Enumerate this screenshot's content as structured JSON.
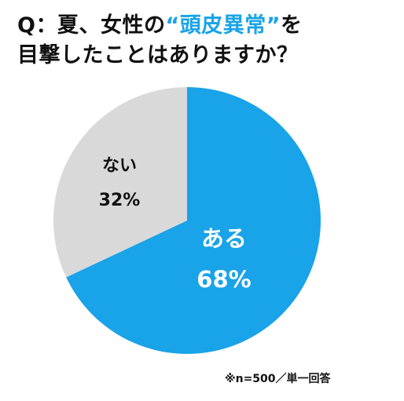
{
  "title": {
    "q_prefix": "Q：夏、女性の",
    "highlight": "“頭皮異常”",
    "suffix": "を",
    "line2": "目撃したことはありますか？",
    "highlight_color": "#19a3e8"
  },
  "note": "※n=500／単一回答",
  "chart_data": {
    "type": "pie",
    "title": "Q：夏、女性の“頭皮異常”を目撃したことはありますか？",
    "slices": [
      {
        "label": "ある",
        "value": 68,
        "value_label": "68%",
        "color": "#19a3e8",
        "text_color": "#ffffff"
      },
      {
        "label": "ない",
        "value": 32,
        "value_label": "32%",
        "color": "#d9d9d9",
        "text_color": "#111111"
      }
    ],
    "start": "12 o'clock",
    "direction": "clockwise",
    "legend": "none"
  }
}
